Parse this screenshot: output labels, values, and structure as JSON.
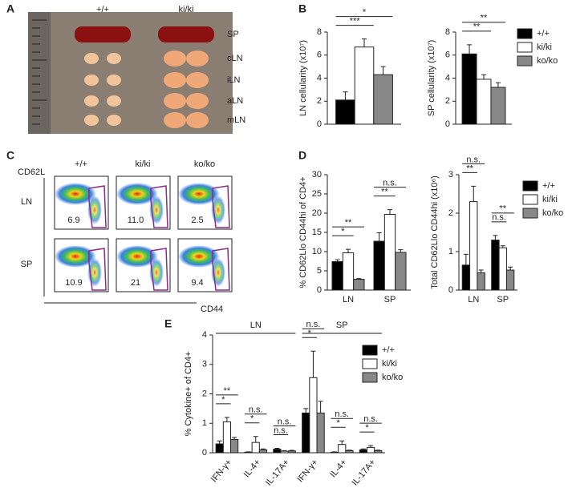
{
  "panel_labels": [
    "A",
    "B",
    "C",
    "D",
    "E"
  ],
  "photo": {
    "columns": [
      "+/+",
      "ki/ki"
    ],
    "organs": [
      "SP",
      "cLN",
      "iLN",
      "aLN",
      "mLN"
    ]
  },
  "flow": {
    "columns": [
      "+/+",
      "ki/ki",
      "ko/ko"
    ],
    "rows": [
      "LN",
      "SP"
    ],
    "y_label": "CD62L",
    "x_label": "CD44",
    "gates": [
      [
        "6.9",
        "11.0",
        "2.5"
      ],
      [
        "10.9",
        "21",
        "9.4"
      ]
    ]
  },
  "chart_data": [
    {
      "type": "bar",
      "ylabel": "LN  cellularity (x10⁷)",
      "categories": [
        null
      ],
      "ylim": [
        0,
        8
      ],
      "yticks": [
        0,
        2,
        4,
        6,
        8
      ],
      "legend": false,
      "series": [
        {
          "name": "+/+",
          "color": "#000000",
          "values": [
            2.1
          ],
          "errors": [
            0.7
          ]
        },
        {
          "name": "ki/ki",
          "color": "#ffffff",
          "values": [
            6.7
          ],
          "errors": [
            0.7
          ]
        },
        {
          "name": "ko/ko",
          "color": "#888888",
          "values": [
            4.3
          ],
          "errors": [
            0.7
          ]
        }
      ],
      "significance": [
        {
          "category": 0,
          "pair": [
            0,
            1
          ],
          "label": "***"
        },
        {
          "category": 0,
          "pair": [
            0,
            2
          ],
          "label": "*"
        }
      ]
    },
    {
      "type": "bar",
      "ylabel": "SP  cellularity (x10⁷)",
      "categories": [
        null
      ],
      "ylim": [
        0,
        8
      ],
      "yticks": [
        0,
        2,
        4,
        6,
        8
      ],
      "legend": true,
      "series": [
        {
          "name": "+/+",
          "color": "#000000",
          "values": [
            6.1
          ],
          "errors": [
            0.8
          ]
        },
        {
          "name": "ki/ki",
          "color": "#ffffff",
          "values": [
            3.9
          ],
          "errors": [
            0.4
          ]
        },
        {
          "name": "ko/ko",
          "color": "#888888",
          "values": [
            3.2
          ],
          "errors": [
            0.4
          ]
        }
      ],
      "significance": [
        {
          "category": 0,
          "pair": [
            0,
            1
          ],
          "label": "**"
        },
        {
          "category": 0,
          "pair": [
            0,
            2
          ],
          "label": "**"
        }
      ]
    },
    {
      "type": "bar",
      "ylabel": "% CD62Llo CD44hi of CD4+",
      "categories": [
        "LN",
        "SP"
      ],
      "ylim": [
        0,
        30
      ],
      "yticks": [
        0,
        5,
        10,
        15,
        20,
        25,
        30
      ],
      "legend": false,
      "series": [
        {
          "name": "+/+",
          "color": "#000000",
          "values": [
            7.4,
            12.7
          ],
          "errors": [
            0.5,
            2.2
          ]
        },
        {
          "name": "ki/ki",
          "color": "#ffffff",
          "values": [
            9.7,
            19.7
          ],
          "errors": [
            0.9,
            1.2
          ]
        },
        {
          "name": "ko/ko",
          "color": "#888888",
          "values": [
            2.8,
            9.8
          ],
          "errors": [
            0.2,
            0.7
          ]
        }
      ],
      "significance": [
        {
          "category": 0,
          "pair": [
            0,
            1
          ],
          "label": "*"
        },
        {
          "category": 0,
          "pair": [
            0,
            2
          ],
          "label": "**"
        },
        {
          "category": 1,
          "pair": [
            0,
            1
          ],
          "label": "**"
        },
        {
          "category": 1,
          "pair": [
            0,
            2
          ],
          "label": "n.s."
        }
      ]
    },
    {
      "type": "bar",
      "ylabel": "Total CD62Llo CD44hi (x10⁶)",
      "categories": [
        "LN",
        "SP"
      ],
      "ylim": [
        0,
        3
      ],
      "yticks": [
        0,
        1,
        2,
        3
      ],
      "legend": true,
      "series": [
        {
          "name": "+/+",
          "color": "#000000",
          "values": [
            0.65,
            1.3
          ],
          "errors": [
            0.28,
            0.12
          ]
        },
        {
          "name": "ki/ki",
          "color": "#ffffff",
          "values": [
            2.3,
            1.1
          ],
          "errors": [
            0.4,
            0.05
          ]
        },
        {
          "name": "ko/ko",
          "color": "#888888",
          "values": [
            0.45,
            0.52
          ],
          "errors": [
            0.07,
            0.08
          ]
        }
      ],
      "significance": [
        {
          "category": 0,
          "pair": [
            0,
            1
          ],
          "label": "**"
        },
        {
          "category": 0,
          "pair": [
            0,
            2
          ],
          "label": "n.s."
        },
        {
          "category": 1,
          "pair": [
            0,
            1
          ],
          "label": "n.s."
        },
        {
          "category": 1,
          "pair": [
            0,
            2
          ],
          "label": "**"
        }
      ]
    },
    {
      "type": "bar",
      "ylabel": "% Cytokine+ of CD4+",
      "categories": [
        "IFN-γ+",
        "IL-4+",
        "IL-17A+",
        "IFN-γ+",
        "IL-4+",
        "IL-17A+"
      ],
      "group_labels": [
        "LN",
        "SP"
      ],
      "ylim": [
        0,
        4
      ],
      "yticks": [
        0,
        1,
        2,
        3,
        4
      ],
      "legend": true,
      "series": [
        {
          "name": "+/+",
          "color": "#000000",
          "values": [
            0.3,
            0.02,
            0.12,
            1.35,
            0.02,
            0.1
          ],
          "errors": [
            0.1,
            0.01,
            0.03,
            0.15,
            0.01,
            0.03
          ]
        },
        {
          "name": "ki/ki",
          "color": "#ffffff",
          "values": [
            1.05,
            0.35,
            0.05,
            2.55,
            0.28,
            0.18
          ],
          "errors": [
            0.15,
            0.2,
            0.02,
            0.9,
            0.12,
            0.06
          ]
        },
        {
          "name": "ko/ko",
          "color": "#888888",
          "values": [
            0.45,
            0.1,
            0.06,
            1.35,
            0.07,
            0.07
          ],
          "errors": [
            0.07,
            0.03,
            0.02,
            0.4,
            0.02,
            0.02
          ]
        }
      ],
      "significance": [
        {
          "category": 0,
          "pair": [
            0,
            1
          ],
          "label": "*"
        },
        {
          "category": 0,
          "pair": [
            0,
            2
          ],
          "label": "**"
        },
        {
          "category": 1,
          "pair": [
            0,
            1
          ],
          "label": "*"
        },
        {
          "category": 1,
          "pair": [
            0,
            2
          ],
          "label": "n.s."
        },
        {
          "category": 2,
          "pair": [
            0,
            1
          ],
          "label": "n.s."
        },
        {
          "category": 2,
          "pair": [
            0,
            2
          ],
          "label": "n.s."
        },
        {
          "category": 3,
          "pair": [
            0,
            1
          ],
          "label": "*"
        },
        {
          "category": 3,
          "pair": [
            0,
            2
          ],
          "label": "n.s."
        },
        {
          "category": 4,
          "pair": [
            0,
            1
          ],
          "label": "*"
        },
        {
          "category": 4,
          "pair": [
            0,
            2
          ],
          "label": "n.s."
        },
        {
          "category": 5,
          "pair": [
            0,
            1
          ],
          "label": "*"
        },
        {
          "category": 5,
          "pair": [
            0,
            2
          ],
          "label": "n.s."
        }
      ]
    }
  ]
}
